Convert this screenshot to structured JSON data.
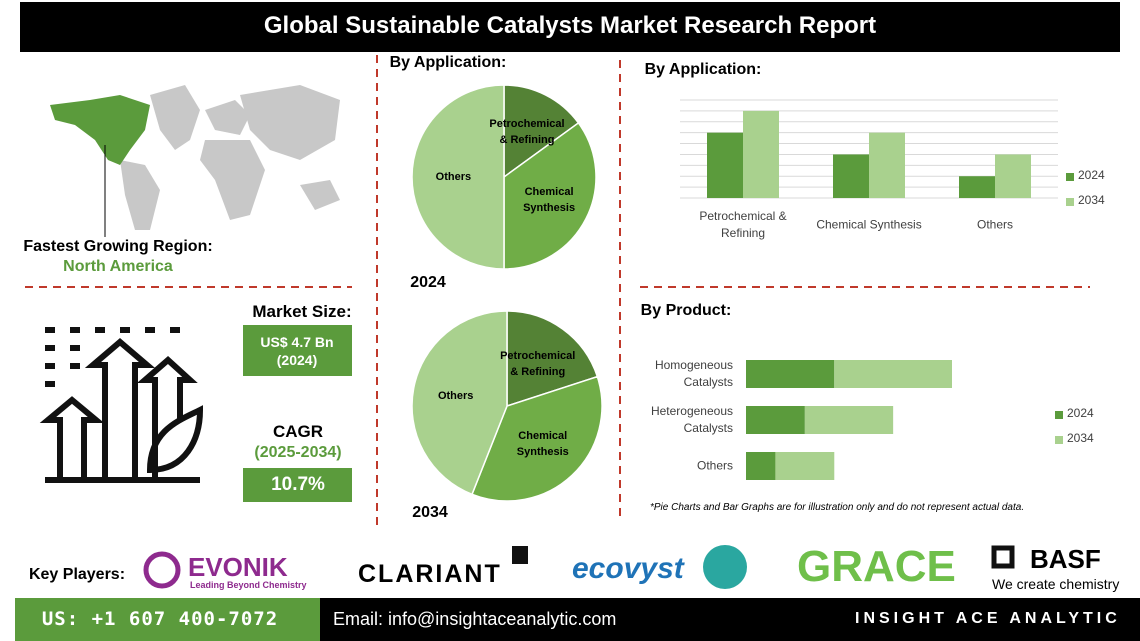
{
  "header": {
    "title": "Global Sustainable Catalysts Market Research Report"
  },
  "region": {
    "label": "Fastest Growing Region:",
    "value": "North America"
  },
  "market_size": {
    "label": "Market Size:",
    "value": "US$ 4.7 Bn (2024)"
  },
  "cagr": {
    "label": "CAGR",
    "period": "(2025-2034)",
    "value": "10.7%"
  },
  "key_players": {
    "label": "Key Players:",
    "companies": [
      {
        "name": "EVONIK",
        "tagline": "Leading Beyond Chemistry"
      },
      {
        "name": "CLARIANT"
      },
      {
        "name": "ecovyst"
      },
      {
        "name": "GRACE"
      },
      {
        "name": "BASF",
        "tagline": "We create chemistry"
      }
    ]
  },
  "note": "*Pie Charts and Bar Graphs are for illustration only and do not represent actual data.",
  "footer": {
    "phone": "US: +1 607 400-7072",
    "email": "Email: info@insightaceanalytic.com",
    "brand": "INSIGHT ACE ANALYTIC"
  },
  "chart_data": [
    {
      "type": "pie",
      "title": "By Application:",
      "label": "2024",
      "categories": [
        "Petrochemical & Refining",
        "Chemical Synthesis",
        "Others"
      ],
      "values": [
        15,
        35,
        50
      ],
      "colors": [
        "#548235",
        "#70ad47",
        "#a9d18e"
      ]
    },
    {
      "type": "pie",
      "label": "2034",
      "categories": [
        "Petrochemical & Refining",
        "Chemical Synthesis",
        "Others"
      ],
      "values": [
        20,
        36,
        44
      ],
      "colors": [
        "#548235",
        "#70ad47",
        "#a9d18e"
      ]
    },
    {
      "type": "bar",
      "title": "By Application:",
      "categories": [
        "Petrochemical & Refining",
        "Chemical Synthesis",
        "Others"
      ],
      "series": [
        {
          "name": "2024",
          "color": "#5b9b3c",
          "values": [
            6,
            4,
            2
          ]
        },
        {
          "name": "2034",
          "color": "#a9d18e",
          "values": [
            8,
            6,
            4
          ]
        }
      ],
      "ylim": [
        0,
        9
      ],
      "yticks": [
        0,
        1,
        2,
        3,
        4,
        5,
        6,
        7,
        8,
        9
      ],
      "grid": true,
      "legend": "right"
    },
    {
      "type": "stacked_barh",
      "title": "By Product:",
      "categories": [
        "Homogeneous Catalysts",
        "Heterogeneous Catalysts",
        "Others"
      ],
      "series": [
        {
          "name": "2024",
          "color": "#5b9b3c",
          "values": [
            3,
            2,
            1
          ]
        },
        {
          "name": "2034",
          "color": "#a9d18e",
          "values": [
            4,
            3,
            2
          ]
        }
      ],
      "xlim": [
        0,
        7
      ],
      "legend": "right"
    }
  ]
}
